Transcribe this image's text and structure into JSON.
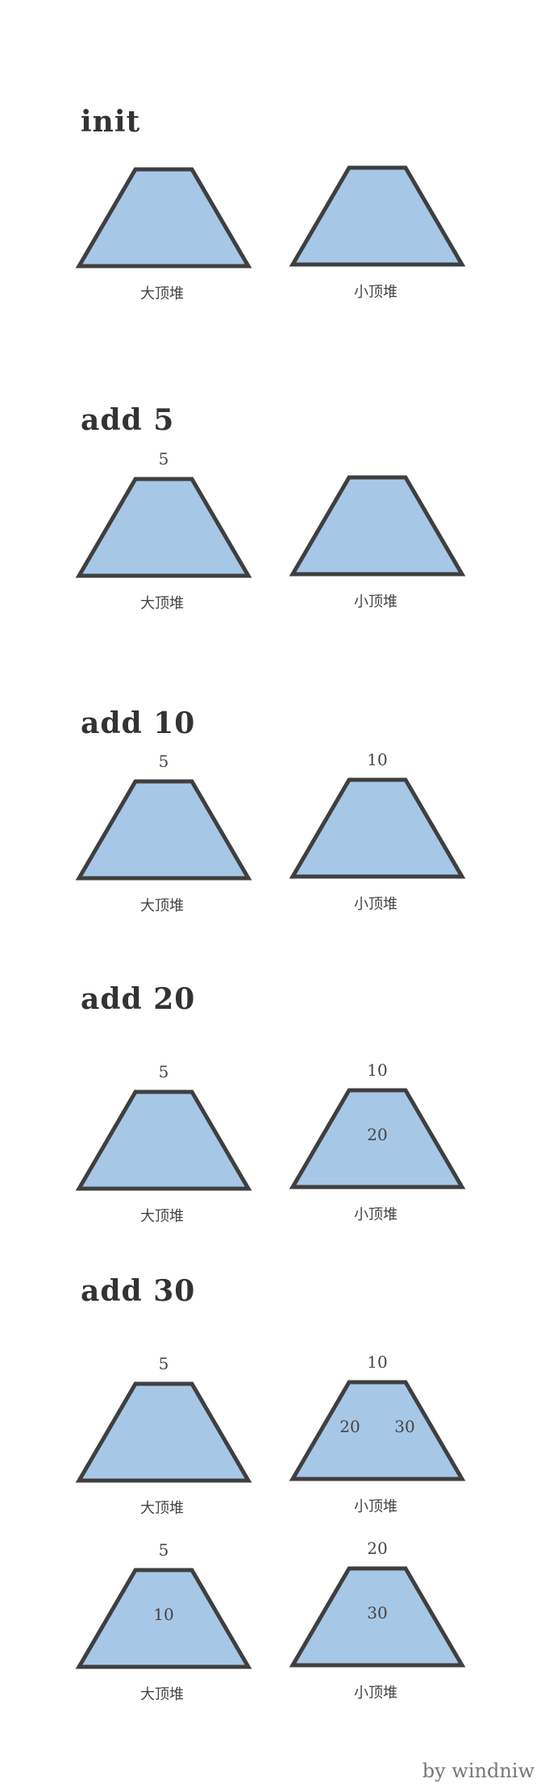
{
  "colors": {
    "fill": "#a7c7e7",
    "stroke": "#3f3f3f"
  },
  "sections": [
    {
      "title": "init",
      "rows": [
        {
          "heaps": [
            {
              "label": "大顶堆",
              "top": "",
              "inner": []
            },
            {
              "label": "小顶堆",
              "top": "",
              "inner": []
            }
          ]
        }
      ]
    },
    {
      "title": "add 5",
      "rows": [
        {
          "heaps": [
            {
              "label": "大顶堆",
              "top": "5",
              "inner": []
            },
            {
              "label": "小顶堆",
              "top": "",
              "inner": []
            }
          ]
        }
      ]
    },
    {
      "title": "add 10",
      "rows": [
        {
          "heaps": [
            {
              "label": "大顶堆",
              "top": "5",
              "inner": []
            },
            {
              "label": "小顶堆",
              "top": "10",
              "inner": []
            }
          ]
        }
      ]
    },
    {
      "title": "add 20",
      "rows": [
        {
          "heaps": [
            {
              "label": "大顶堆",
              "top": "5",
              "inner": []
            },
            {
              "label": "小顶堆",
              "top": "10",
              "inner": [
                "20"
              ]
            }
          ]
        }
      ]
    },
    {
      "title": "add 30",
      "rows": [
        {
          "heaps": [
            {
              "label": "大顶堆",
              "top": "5",
              "inner": []
            },
            {
              "label": "小顶堆",
              "top": "10",
              "inner": [
                "20",
                "30"
              ]
            }
          ]
        },
        {
          "heaps": [
            {
              "label": "大顶堆",
              "top": "5",
              "inner": [
                "10"
              ]
            },
            {
              "label": "小顶堆",
              "top": "20",
              "inner": [
                "30"
              ]
            }
          ]
        }
      ]
    }
  ],
  "footer": "by windniw"
}
